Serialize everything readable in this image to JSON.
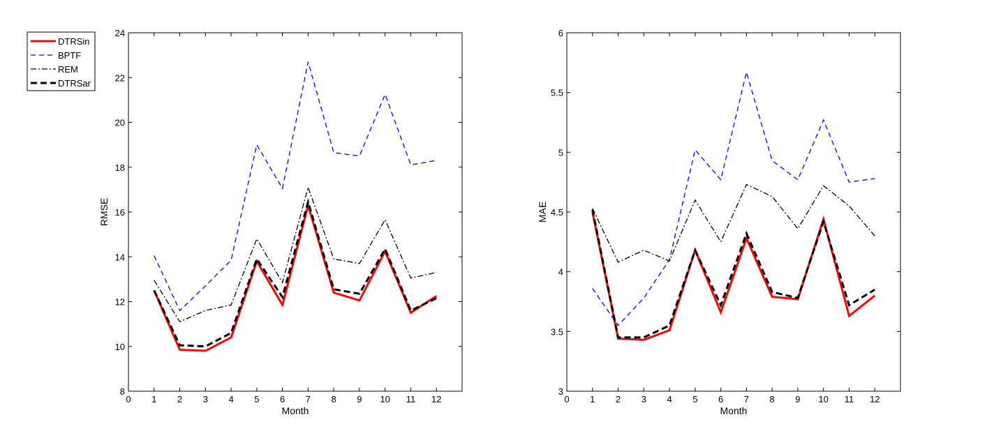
{
  "chart_data": [
    {
      "type": "line",
      "xlabel": "Month",
      "ylabel": "RMSE",
      "xlim": [
        0,
        13
      ],
      "ylim": [
        8,
        24
      ],
      "xticks": [
        "0",
        "1",
        "2",
        "3",
        "4",
        "5",
        "6",
        "7",
        "8",
        "9",
        "10",
        "11",
        "12"
      ],
      "yticks": [
        "8",
        "10",
        "12",
        "14",
        "16",
        "18",
        "20",
        "22",
        "24"
      ],
      "x": [
        1,
        2,
        3,
        4,
        5,
        6,
        7,
        8,
        9,
        10,
        11,
        12
      ],
      "legend_position": "outside-top-left",
      "series": [
        {
          "name": "DTRSin",
          "values": [
            12.5,
            9.85,
            9.8,
            10.4,
            13.8,
            11.85,
            16.3,
            12.4,
            12.05,
            14.25,
            11.5,
            12.25
          ]
        },
        {
          "name": "BPTF",
          "values": [
            14.05,
            11.6,
            12.7,
            13.85,
            19.0,
            17.05,
            22.7,
            18.65,
            18.5,
            21.25,
            18.1,
            18.3
          ]
        },
        {
          "name": "REM",
          "values": [
            12.95,
            11.1,
            11.6,
            11.85,
            14.8,
            12.85,
            17.1,
            13.9,
            13.7,
            15.65,
            13.05,
            13.3
          ]
        },
        {
          "name": "DTRSar",
          "values": [
            12.5,
            10.05,
            10.0,
            10.6,
            13.9,
            12.2,
            16.45,
            12.55,
            12.35,
            14.35,
            11.6,
            12.15
          ]
        }
      ]
    },
    {
      "type": "line",
      "xlabel": "Month",
      "ylabel": "MAE",
      "xlim": [
        0,
        13
      ],
      "ylim": [
        3,
        6
      ],
      "xticks": [
        "0",
        "1",
        "2",
        "3",
        "4",
        "5",
        "6",
        "7",
        "8",
        "9",
        "10",
        "11",
        "12"
      ],
      "yticks": [
        "3",
        "3.5",
        "4",
        "4.5",
        "5",
        "5.5",
        "6"
      ],
      "x": [
        1,
        2,
        3,
        4,
        5,
        6,
        7,
        8,
        9,
        10,
        11,
        12
      ],
      "series": [
        {
          "name": "DTRSin",
          "values": [
            4.5,
            3.44,
            3.43,
            3.51,
            4.18,
            3.66,
            4.28,
            3.79,
            3.77,
            4.44,
            3.63,
            3.8
          ]
        },
        {
          "name": "BPTF",
          "values": [
            3.86,
            3.55,
            3.78,
            4.1,
            5.02,
            4.77,
            5.67,
            4.93,
            4.77,
            5.27,
            4.75,
            4.78
          ]
        },
        {
          "name": "REM",
          "values": [
            4.53,
            4.08,
            4.18,
            4.09,
            4.6,
            4.25,
            4.73,
            4.63,
            4.36,
            4.72,
            4.55,
            4.3
          ]
        },
        {
          "name": "DTRSar",
          "values": [
            4.52,
            3.45,
            3.45,
            3.55,
            4.18,
            3.72,
            4.32,
            3.83,
            3.78,
            4.42,
            3.72,
            3.85
          ]
        }
      ]
    }
  ],
  "colors": {
    "DTRSin": "#ff0000",
    "BPTF": "#0000ff",
    "REM": "#000000",
    "DTRSar": "#000000"
  }
}
